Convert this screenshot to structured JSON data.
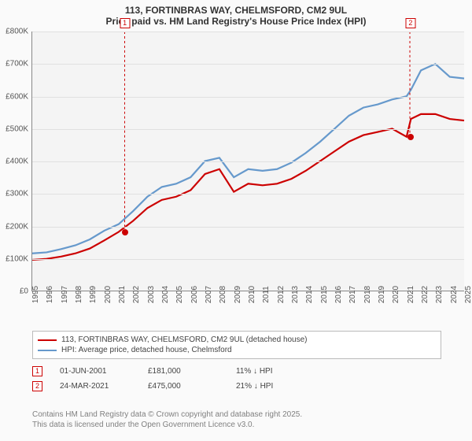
{
  "title": {
    "line1": "113, FORTINBRAS WAY, CHELMSFORD, CM2 9UL",
    "line2": "Price paid vs. HM Land Registry's House Price Index (HPI)"
  },
  "chart": {
    "type": "line",
    "background_color": "#f4f4f4",
    "grid_color": "#e0e0e0",
    "axis_color": "#888888",
    "x": {
      "min": 1995,
      "max": 2025,
      "ticks": [
        1995,
        1996,
        1997,
        1998,
        1999,
        2000,
        2001,
        2002,
        2003,
        2004,
        2005,
        2006,
        2007,
        2008,
        2009,
        2010,
        2011,
        2012,
        2013,
        2014,
        2015,
        2016,
        2017,
        2018,
        2019,
        2020,
        2021,
        2022,
        2023,
        2024,
        2025
      ]
    },
    "y": {
      "min": 0,
      "max": 800000,
      "ticks": [
        0,
        100000,
        200000,
        300000,
        400000,
        500000,
        600000,
        700000,
        800000
      ],
      "labels": [
        "£0",
        "£100K",
        "£200K",
        "£300K",
        "£400K",
        "£500K",
        "£600K",
        "£700K",
        "£800K"
      ]
    },
    "series": [
      {
        "name": "113, FORTINBRAS WAY, CHELMSFORD, CM2 9UL (detached house)",
        "color": "#cc0000",
        "width": 2.2,
        "points": [
          [
            1995,
            95000
          ],
          [
            1996,
            98000
          ],
          [
            1997,
            105000
          ],
          [
            1998,
            115000
          ],
          [
            1999,
            130000
          ],
          [
            2000,
            155000
          ],
          [
            2001,
            181000
          ],
          [
            2002,
            215000
          ],
          [
            2003,
            255000
          ],
          [
            2004,
            280000
          ],
          [
            2005,
            290000
          ],
          [
            2006,
            310000
          ],
          [
            2007,
            360000
          ],
          [
            2008,
            375000
          ],
          [
            2009,
            305000
          ],
          [
            2010,
            330000
          ],
          [
            2011,
            325000
          ],
          [
            2012,
            330000
          ],
          [
            2013,
            345000
          ],
          [
            2014,
            370000
          ],
          [
            2015,
            400000
          ],
          [
            2016,
            430000
          ],
          [
            2017,
            460000
          ],
          [
            2018,
            480000
          ],
          [
            2019,
            490000
          ],
          [
            2020,
            500000
          ],
          [
            2021,
            475000
          ],
          [
            2021.3,
            530000
          ],
          [
            2022,
            545000
          ],
          [
            2023,
            545000
          ],
          [
            2024,
            530000
          ],
          [
            2025,
            525000
          ]
        ]
      },
      {
        "name": "HPI: Average price, detached house, Chelmsford",
        "color": "#6699cc",
        "width": 2.2,
        "points": [
          [
            1995,
            115000
          ],
          [
            1996,
            118000
          ],
          [
            1997,
            128000
          ],
          [
            1998,
            140000
          ],
          [
            1999,
            158000
          ],
          [
            2000,
            185000
          ],
          [
            2001,
            205000
          ],
          [
            2002,
            245000
          ],
          [
            2003,
            290000
          ],
          [
            2004,
            320000
          ],
          [
            2005,
            330000
          ],
          [
            2006,
            350000
          ],
          [
            2007,
            400000
          ],
          [
            2008,
            410000
          ],
          [
            2009,
            350000
          ],
          [
            2010,
            375000
          ],
          [
            2011,
            370000
          ],
          [
            2012,
            375000
          ],
          [
            2013,
            395000
          ],
          [
            2014,
            425000
          ],
          [
            2015,
            460000
          ],
          [
            2016,
            500000
          ],
          [
            2017,
            540000
          ],
          [
            2018,
            565000
          ],
          [
            2019,
            575000
          ],
          [
            2020,
            590000
          ],
          [
            2021,
            600000
          ],
          [
            2021.3,
            620000
          ],
          [
            2022,
            680000
          ],
          [
            2023,
            700000
          ],
          [
            2024,
            660000
          ],
          [
            2025,
            655000
          ]
        ]
      }
    ],
    "markers": [
      {
        "n": "1",
        "x": 2001.42,
        "y": 181000
      },
      {
        "n": "2",
        "x": 2021.23,
        "y": 475000
      }
    ]
  },
  "legend": {
    "items": [
      {
        "color": "#cc0000",
        "label": "113, FORTINBRAS WAY, CHELMSFORD, CM2 9UL (detached house)"
      },
      {
        "color": "#6699cc",
        "label": "HPI: Average price, detached house, Chelmsford"
      }
    ]
  },
  "sales": [
    {
      "n": "1",
      "date": "01-JUN-2001",
      "price": "£181,000",
      "delta": "11% ↓ HPI"
    },
    {
      "n": "2",
      "date": "24-MAR-2021",
      "price": "£475,000",
      "delta": "21% ↓ HPI"
    }
  ],
  "footer": {
    "line1": "Contains HM Land Registry data © Crown copyright and database right 2025.",
    "line2": "This data is licensed under the Open Government Licence v3.0."
  }
}
